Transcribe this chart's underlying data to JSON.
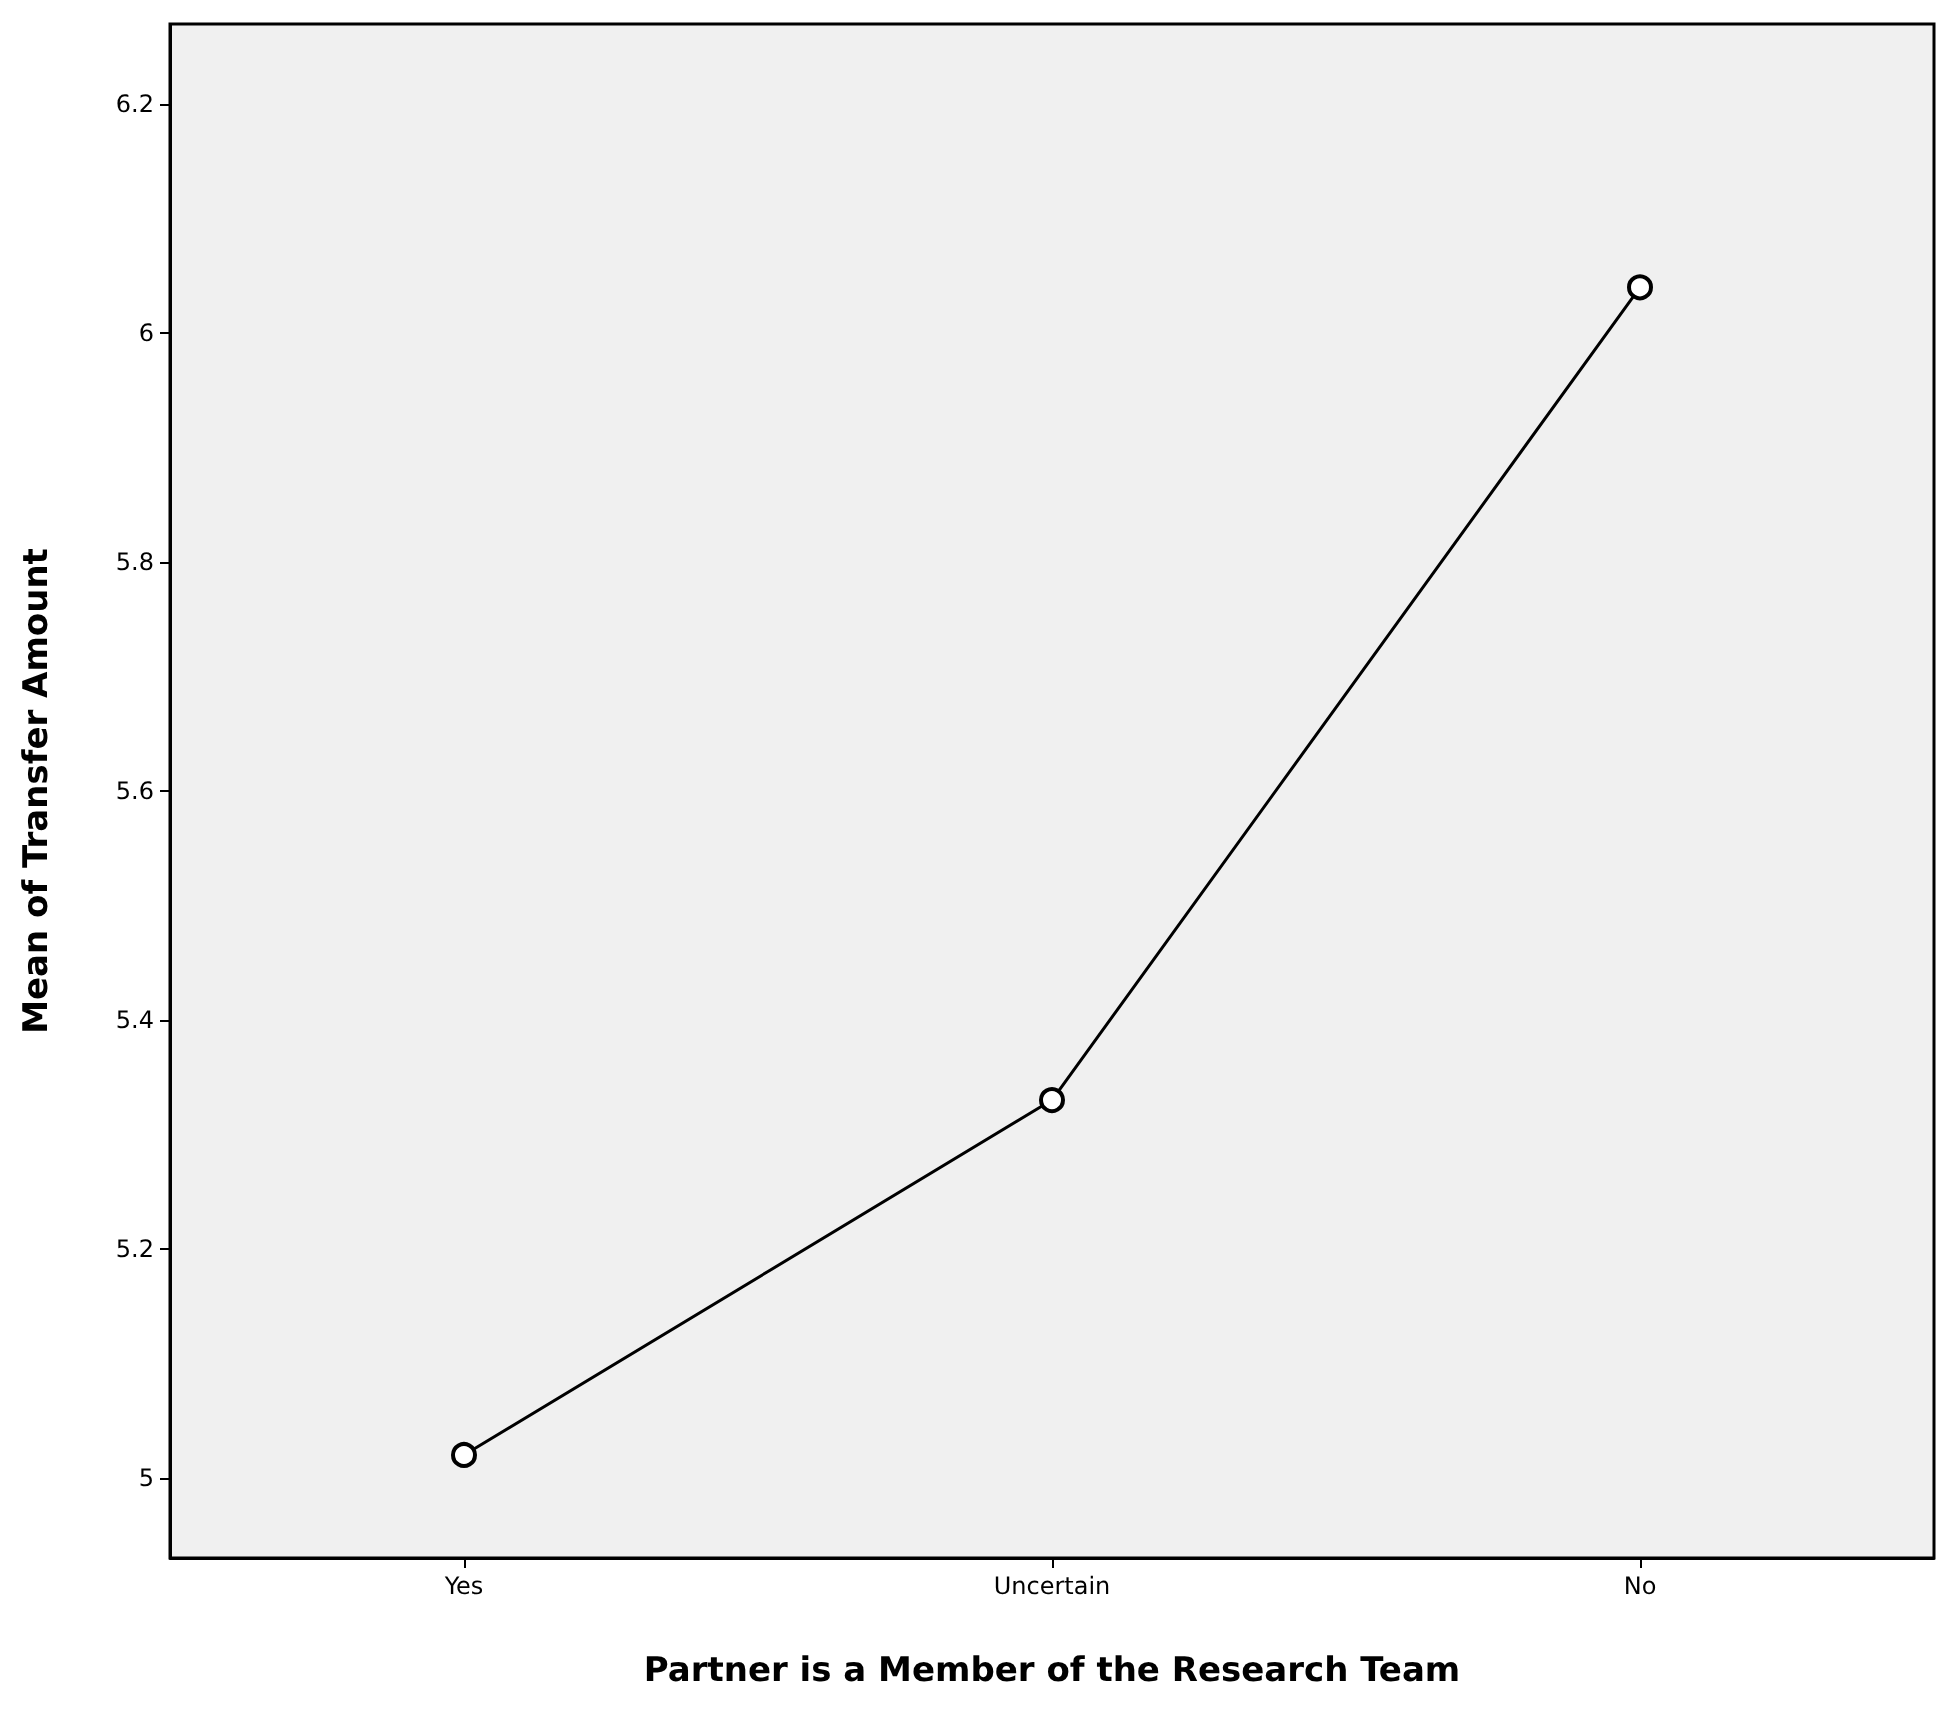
{
  "chart_data": {
    "type": "line",
    "xlabel": "Partner is a Member of the Research Team",
    "ylabel": "Mean of Transfer Amount",
    "categories": [
      "Yes",
      "Uncertain",
      "No"
    ],
    "series": [
      {
        "color": "#000000",
        "values": [
          5.02,
          5.33,
          6.04
        ]
      }
    ],
    "ylim": [
      4.93,
      6.27
    ],
    "yticks": [
      5,
      5.2,
      5.4,
      5.6,
      5.8,
      6,
      6.2
    ],
    "grid": false,
    "marker": "circle",
    "line_style": "solid"
  }
}
